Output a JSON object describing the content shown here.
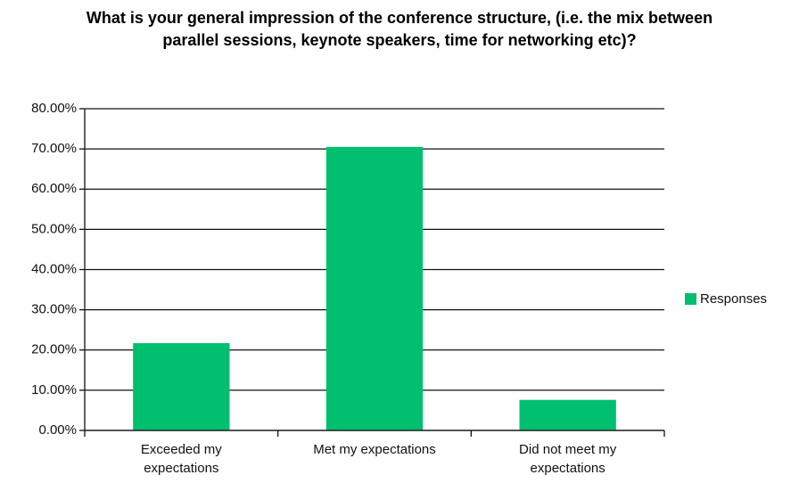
{
  "chart_data": {
    "type": "bar",
    "title": "What is your general impression of the conference structure, (i.e. the mix between parallel sessions, keynote speakers, time for networking etc)?",
    "categories": [
      "Exceeded my expectations",
      "Met my expectations",
      "Did not meet my expectations"
    ],
    "series": [
      {
        "name": "Responses",
        "color": "#00bf6f",
        "values": [
          21.7,
          70.5,
          7.6
        ]
      }
    ],
    "ylim": [
      0,
      80
    ],
    "yticks": [
      {
        "value": 0,
        "label": "0.00%"
      },
      {
        "value": 10,
        "label": "10.00%"
      },
      {
        "value": 20,
        "label": "20.00%"
      },
      {
        "value": 30,
        "label": "30.00%"
      },
      {
        "value": 40,
        "label": "40.00%"
      },
      {
        "value": 50,
        "label": "50.00%"
      },
      {
        "value": 60,
        "label": "60.00%"
      },
      {
        "value": 70,
        "label": "70.00%"
      },
      {
        "value": 80,
        "label": "80.00%"
      }
    ],
    "grid": true,
    "legend": "right"
  }
}
